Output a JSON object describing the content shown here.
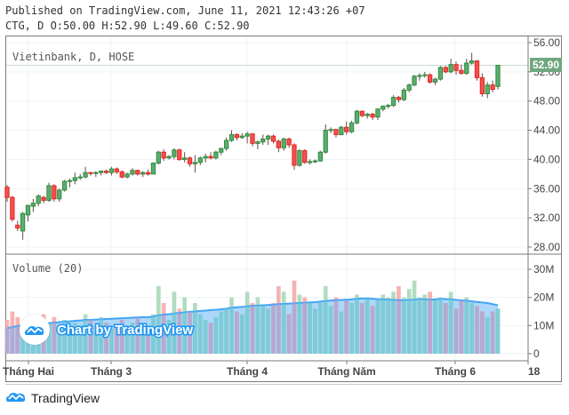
{
  "header": {
    "published": "Published on TradingView.com, June 11, 2021 12:43:26 +07",
    "ohlc_line": "CTG, D O:50.00 H:52.90 L:49.60 C:52.90"
  },
  "chart": {
    "symbol_legend": "Vietinbank, D, HOSE",
    "volume_legend": "Volume (20)",
    "last_price_label": "52.90",
    "watermark_text": "Chart by TradingView",
    "footer_brand": "TradingView",
    "colors": {
      "up": "#26a69a",
      "up_candle": "#4caf50",
      "down": "#ef5350",
      "volume_up": "#a5d6b7",
      "volume_down": "#f4a6a6",
      "volume_ma_fill": "#90caf9",
      "volume_ma_line": "#42a5f5",
      "last_price_tag": "#6fa77f",
      "brand": "#2196f3"
    }
  },
  "chart_data": {
    "type": "candlestick",
    "title": "Vietinbank, D, HOSE",
    "ticker": "CTG",
    "interval": "D",
    "exchange": "HOSE",
    "last": {
      "open": 50.0,
      "high": 52.9,
      "low": 49.6,
      "close": 52.9
    },
    "price_axis": {
      "ticks": [
        28.0,
        32.0,
        36.0,
        40.0,
        44.0,
        48.0,
        52.0,
        56.0
      ],
      "range": [
        27.5,
        56.0
      ]
    },
    "volume_axis": {
      "ticks_label": [
        "0",
        "10M",
        "20M",
        "30M"
      ],
      "ticks": [
        0,
        10,
        20,
        30
      ],
      "unit": "M",
      "range": [
        0,
        36
      ]
    },
    "time_axis": {
      "labels": [
        "Tháng Hai",
        "Tháng 3",
        "Tháng 4",
        "Tháng Năm",
        "Tháng 6",
        "18"
      ]
    },
    "volume_ma_period": 20,
    "candles": [
      [
        36.2,
        36.5,
        34.2,
        34.8,
        12
      ],
      [
        34.8,
        35.0,
        31.5,
        31.8,
        15
      ],
      [
        31.0,
        31.6,
        30.2,
        30.6,
        13
      ],
      [
        30.2,
        32.8,
        29.0,
        32.6,
        9
      ],
      [
        32.4,
        33.8,
        31.5,
        33.7,
        8
      ],
      [
        33.6,
        34.6,
        32.8,
        34.0,
        10
      ],
      [
        34.0,
        35.2,
        33.6,
        35.0,
        9
      ],
      [
        34.8,
        35.0,
        34.0,
        34.4,
        14
      ],
      [
        34.4,
        36.8,
        34.2,
        36.4,
        11
      ],
      [
        36.4,
        36.6,
        34.2,
        34.6,
        13
      ],
      [
        34.6,
        36.0,
        34.2,
        35.8,
        10
      ],
      [
        35.8,
        37.2,
        35.6,
        37.0,
        12
      ],
      [
        37.0,
        37.4,
        36.2,
        37.1,
        9
      ],
      [
        37.1,
        38.2,
        36.6,
        37.5,
        11
      ],
      [
        37.5,
        38.0,
        37.2,
        37.6,
        10
      ],
      [
        37.6,
        39.0,
        37.4,
        38.2,
        14
      ],
      [
        38.2,
        38.3,
        37.8,
        38.1,
        12
      ],
      [
        38.1,
        38.4,
        37.6,
        38.2,
        10
      ],
      [
        38.2,
        38.5,
        37.8,
        38.4,
        13
      ],
      [
        38.4,
        38.6,
        38.0,
        38.2,
        11
      ],
      [
        38.2,
        39.0,
        37.8,
        38.7,
        9
      ],
      [
        38.7,
        38.9,
        38.0,
        38.3,
        10
      ],
      [
        38.3,
        38.5,
        37.4,
        37.6,
        12
      ],
      [
        37.6,
        38.2,
        37.4,
        38.0,
        8
      ],
      [
        38.0,
        38.8,
        37.8,
        38.5,
        11
      ],
      [
        38.5,
        38.6,
        37.8,
        38.0,
        13
      ],
      [
        38.0,
        38.4,
        37.6,
        38.2,
        9
      ],
      [
        38.2,
        38.6,
        37.8,
        38.0,
        10
      ],
      [
        38.0,
        39.6,
        38.0,
        39.5,
        14
      ],
      [
        39.5,
        41.2,
        39.3,
        41.0,
        24
      ],
      [
        41.0,
        41.4,
        39.8,
        40.2,
        18
      ],
      [
        40.2,
        40.6,
        40.0,
        40.4,
        12
      ],
      [
        40.4,
        41.5,
        40.0,
        41.3,
        22
      ],
      [
        41.3,
        41.5,
        39.8,
        40.0,
        16
      ],
      [
        40.0,
        41.0,
        39.6,
        40.2,
        20
      ],
      [
        40.2,
        40.4,
        39.0,
        39.4,
        15
      ],
      [
        39.4,
        40.6,
        38.2,
        39.6,
        18
      ],
      [
        39.6,
        40.4,
        39.2,
        40.2,
        14
      ],
      [
        40.2,
        40.8,
        39.6,
        40.4,
        12
      ],
      [
        40.4,
        41.0,
        40.0,
        40.2,
        11
      ],
      [
        40.2,
        41.2,
        40.0,
        41.0,
        13
      ],
      [
        41.0,
        41.6,
        40.6,
        41.5,
        15
      ],
      [
        41.5,
        43.0,
        41.2,
        42.6,
        16
      ],
      [
        42.6,
        44.0,
        42.4,
        43.4,
        20
      ],
      [
        43.4,
        43.6,
        42.6,
        43.0,
        15
      ],
      [
        43.0,
        43.6,
        42.8,
        43.2,
        14
      ],
      [
        43.2,
        43.8,
        42.2,
        43.5,
        22
      ],
      [
        43.5,
        43.6,
        41.8,
        42.2,
        18
      ],
      [
        42.2,
        42.6,
        41.4,
        42.4,
        20
      ],
      [
        42.4,
        43.4,
        42.0,
        42.8,
        17
      ],
      [
        42.8,
        43.4,
        42.0,
        43.2,
        16
      ],
      [
        43.2,
        43.4,
        42.2,
        42.5,
        18
      ],
      [
        42.5,
        42.7,
        41.0,
        41.6,
        24
      ],
      [
        41.6,
        43.0,
        41.2,
        42.8,
        22
      ],
      [
        42.8,
        43.0,
        41.6,
        42.0,
        14
      ],
      [
        42.0,
        42.2,
        38.6,
        39.2,
        26
      ],
      [
        39.2,
        41.4,
        39.0,
        41.2,
        21
      ],
      [
        41.2,
        41.4,
        39.4,
        39.6,
        20
      ],
      [
        39.6,
        40.0,
        39.3,
        39.7,
        18
      ],
      [
        39.7,
        40.0,
        39.5,
        39.8,
        16
      ],
      [
        39.8,
        41.2,
        39.7,
        41.0,
        18
      ],
      [
        41.0,
        44.8,
        40.8,
        44.0,
        24
      ],
      [
        44.0,
        44.4,
        43.6,
        44.1,
        17
      ],
      [
        44.1,
        44.2,
        43.0,
        43.4,
        20
      ],
      [
        43.4,
        44.6,
        43.3,
        44.4,
        15
      ],
      [
        44.4,
        45.2,
        43.4,
        43.8,
        19
      ],
      [
        43.8,
        45.3,
        43.6,
        45.0,
        18
      ],
      [
        45.0,
        46.8,
        44.8,
        46.6,
        21
      ],
      [
        46.6,
        46.7,
        45.8,
        46.0,
        18
      ],
      [
        46.0,
        46.4,
        45.6,
        46.2,
        20
      ],
      [
        46.2,
        46.4,
        45.4,
        45.8,
        17
      ],
      [
        45.8,
        47.0,
        45.4,
        46.9,
        19
      ],
      [
        46.9,
        47.4,
        46.6,
        47.3,
        21
      ],
      [
        47.3,
        47.6,
        47.0,
        47.4,
        20
      ],
      [
        47.4,
        48.8,
        47.2,
        48.5,
        22
      ],
      [
        48.5,
        48.7,
        47.8,
        48.2,
        24
      ],
      [
        48.2,
        49.8,
        48.0,
        49.5,
        20
      ],
      [
        49.5,
        50.4,
        49.2,
        50.2,
        23
      ],
      [
        50.2,
        51.6,
        50.0,
        51.4,
        26
      ],
      [
        51.4,
        51.8,
        50.8,
        51.5,
        20
      ],
      [
        51.5,
        52.0,
        51.2,
        51.6,
        21
      ],
      [
        51.6,
        51.8,
        50.4,
        50.6,
        22
      ],
      [
        50.6,
        51.2,
        50.2,
        51.0,
        19
      ],
      [
        51.0,
        52.8,
        50.8,
        52.6,
        20
      ],
      [
        52.6,
        52.8,
        51.8,
        52.0,
        18
      ],
      [
        52.0,
        53.8,
        51.8,
        53.0,
        22
      ],
      [
        53.0,
        53.4,
        51.6,
        52.2,
        16
      ],
      [
        52.2,
        53.0,
        51.6,
        51.8,
        19
      ],
      [
        51.8,
        53.8,
        51.6,
        53.2,
        20
      ],
      [
        53.2,
        54.6,
        53.0,
        53.5,
        18
      ],
      [
        53.5,
        53.6,
        50.8,
        51.2,
        17
      ],
      [
        51.2,
        51.8,
        48.6,
        49.0,
        15
      ],
      [
        49.0,
        50.6,
        48.4,
        50.2,
        13
      ],
      [
        50.2,
        50.8,
        49.2,
        49.6,
        15
      ],
      [
        50.0,
        52.9,
        49.6,
        52.9,
        16
      ]
    ],
    "volume_ma": [
      9,
      9.5,
      9.8,
      10,
      10.2,
      10.4,
      10.6,
      10.7,
      10.9,
      11,
      11.2,
      11.4,
      11.5,
      11.7,
      11.8,
      12,
      12,
      12.1,
      12.2,
      12.3,
      12.4,
      12.5,
      12.6,
      12.7,
      12.8,
      12.9,
      13,
      13,
      13.2,
      13.6,
      13.9,
      14,
      14.3,
      14.5,
      14.7,
      14.9,
      15,
      15.2,
      15.3,
      15.5,
      15.6,
      15.8,
      16,
      16.3,
      16.5,
      16.6,
      16.8,
      17,
      17.1,
      17.2,
      17.3,
      17.4,
      17.6,
      17.7,
      17.8,
      17.9,
      18,
      18.1,
      18.2,
      18.3,
      18.5,
      18.7,
      18.9,
      19,
      19.1,
      19.2,
      19.3,
      19.5,
      19.6,
      19.6,
      19.5,
      19.4,
      19.3,
      19.2,
      19.1,
      19,
      19,
      19.1,
      19.2,
      19.4,
      19.3,
      19.2,
      19.3,
      19.5,
      19.4,
      19.3,
      19.1,
      19,
      18.8,
      18.6,
      18.4,
      18.2,
      18,
      17.6,
      17.2
    ]
  }
}
